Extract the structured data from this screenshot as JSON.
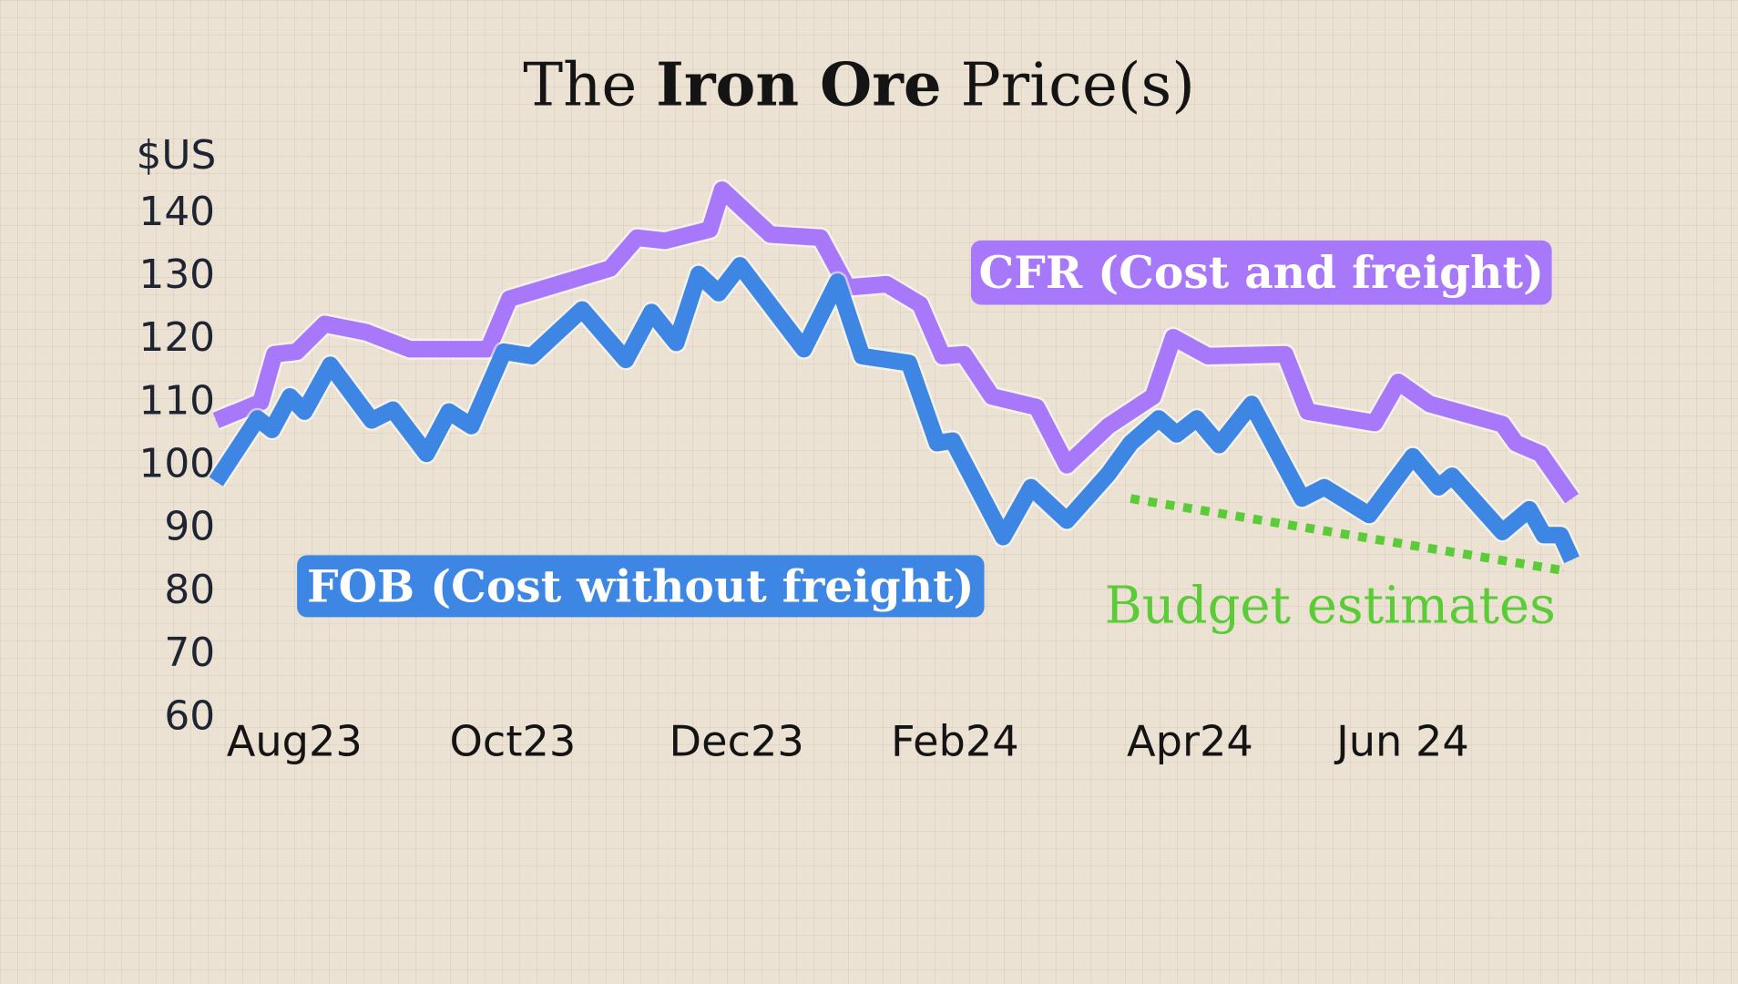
{
  "chart_data": {
    "type": "line",
    "title": {
      "prefix": "The ",
      "bold": "Iron Ore",
      "suffix": " Price(s)"
    },
    "ylabel": "$US",
    "xlabel": "",
    "ylim": [
      60,
      140
    ],
    "yticks": [
      140,
      130,
      120,
      110,
      100,
      90,
      80,
      70,
      60
    ],
    "x_unit": "months since Aug 2023",
    "xlim": [
      0,
      12.5
    ],
    "xticks": [
      {
        "label": "Aug23",
        "x": 0.65
      },
      {
        "label": "Oct23",
        "x": 2.6
      },
      {
        "label": "Dec23",
        "x": 4.6
      },
      {
        "label": "Feb24",
        "x": 6.55
      },
      {
        "label": "Apr24",
        "x": 8.65
      },
      {
        "label": "Jun 24",
        "x": 10.55
      }
    ],
    "grid": true,
    "series": [
      {
        "name": "CFR (Cost and freight)",
        "label": "CFR (Cost and freight)",
        "color": "#a778fa",
        "x": [
          -0.05,
          0.35,
          0.47,
          0.67,
          0.92,
          1.29,
          1.68,
          2.38,
          2.57,
          3.47,
          3.71,
          3.96,
          4.36,
          4.47,
          4.9,
          5.35,
          5.59,
          5.94,
          6.24,
          6.44,
          6.63,
          6.88,
          7.28,
          7.55,
          7.92,
          8.32,
          8.5,
          8.81,
          9.5,
          9.7,
          10.3,
          10.51,
          10.79,
          11.44,
          11.56,
          11.78,
          12.06
        ],
        "values": [
          106.7,
          109.6,
          117.2,
          117.6,
          122.0,
          120.7,
          118.0,
          118.0,
          126.0,
          130.8,
          135.7,
          135.2,
          137.0,
          143.3,
          136.2,
          135.7,
          127.8,
          128.3,
          125.1,
          116.9,
          117.2,
          110.5,
          108.8,
          99.6,
          105.8,
          110.5,
          119.9,
          116.9,
          117.2,
          108.1,
          106.3,
          112.8,
          109.3,
          106.1,
          103.1,
          101.4,
          94.3
        ]
      },
      {
        "name": "FOB (Cost without freight)",
        "label": "FOB (Cost without freight)",
        "color": "#3d86e4",
        "x": [
          -0.05,
          0.32,
          0.45,
          0.61,
          0.74,
          0.97,
          1.34,
          1.53,
          1.83,
          2.03,
          2.23,
          2.52,
          2.77,
          3.22,
          3.61,
          3.84,
          4.06,
          4.26,
          4.44,
          4.63,
          5.2,
          5.5,
          5.72,
          6.14,
          6.39,
          6.53,
          6.98,
          7.23,
          7.55,
          7.92,
          8.12,
          8.37,
          8.53,
          8.71,
          8.91,
          9.2,
          9.65,
          9.85,
          10.25,
          10.64,
          10.87,
          10.99,
          11.44,
          11.68,
          11.81,
          11.96,
          12.06
        ],
        "values": [
          97.0,
          107.0,
          105.2,
          110.5,
          108.1,
          115.5,
          106.7,
          108.4,
          101.4,
          108.1,
          105.8,
          117.6,
          116.9,
          124.3,
          116.3,
          123.9,
          119.0,
          129.9,
          126.9,
          131.3,
          118.0,
          128.7,
          116.9,
          115.8,
          103.1,
          103.5,
          88.2,
          96.1,
          90.8,
          98.2,
          103.1,
          107.0,
          104.5,
          107.0,
          102.8,
          109.3,
          94.3,
          96.1,
          91.7,
          101.0,
          96.1,
          97.9,
          89.0,
          92.6,
          88.5,
          88.5,
          84.6
        ]
      },
      {
        "name": "Budget estimates",
        "label": "Budget estimates",
        "color": "#5ccb38",
        "style": "dotted",
        "x": [
          8.12,
          11.98
        ],
        "values": [
          94.3,
          82.9
        ]
      }
    ],
    "annotations": [
      {
        "text": "CFR (Cost and freight)",
        "series": 0,
        "style": "tag",
        "placement": "upper-right"
      },
      {
        "text": "FOB (Cost without freight)",
        "series": 1,
        "style": "tag",
        "placement": "lower-left"
      },
      {
        "text": "Budget estimates",
        "series": 2,
        "style": "plain",
        "placement": "below line, right"
      }
    ]
  }
}
